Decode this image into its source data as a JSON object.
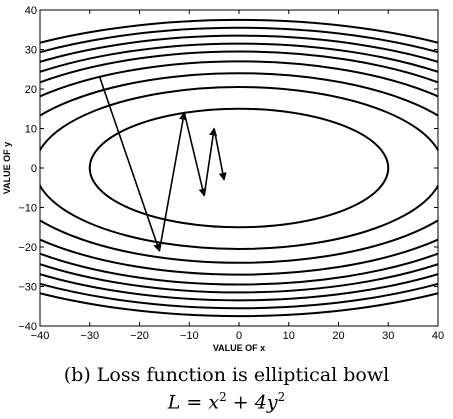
{
  "chart_data": {
    "type": "contour",
    "xlabel": "VALUE OF x",
    "ylabel": "VALUE OF y",
    "xlim": [
      -40,
      40
    ],
    "ylim": [
      -40,
      40
    ],
    "xticks": [
      -40,
      -30,
      -20,
      -10,
      0,
      10,
      20,
      30,
      40
    ],
    "yticks": [
      -40,
      -30,
      -20,
      -10,
      0,
      10,
      20,
      30,
      40
    ],
    "x_tick_labels": [
      "−40",
      "−30",
      "−20",
      "−10",
      "0",
      "10",
      "20",
      "30",
      "40"
    ],
    "y_tick_labels": [
      "−40",
      "−30",
      "−20",
      "−10",
      "0",
      "10",
      "20",
      "30",
      "40"
    ],
    "grid": false,
    "loss_function": "L = x^2 + 4y^2",
    "contour_x_semi_axes": [
      30,
      41,
      48,
      54,
      59,
      63,
      67,
      71,
      75
    ],
    "contour_color": "#000000",
    "descent_path": {
      "x": [
        -28,
        -16,
        -11,
        -7,
        -5,
        -3
      ],
      "y": [
        23,
        -21,
        14,
        -7,
        10,
        -3
      ]
    }
  },
  "caption": {
    "line1": "(b) Loss function is elliptical bowl",
    "line2_base": "L = x",
    "line2_exp1": "2",
    "line2_mid": " + 4y",
    "line2_exp2": "2"
  }
}
